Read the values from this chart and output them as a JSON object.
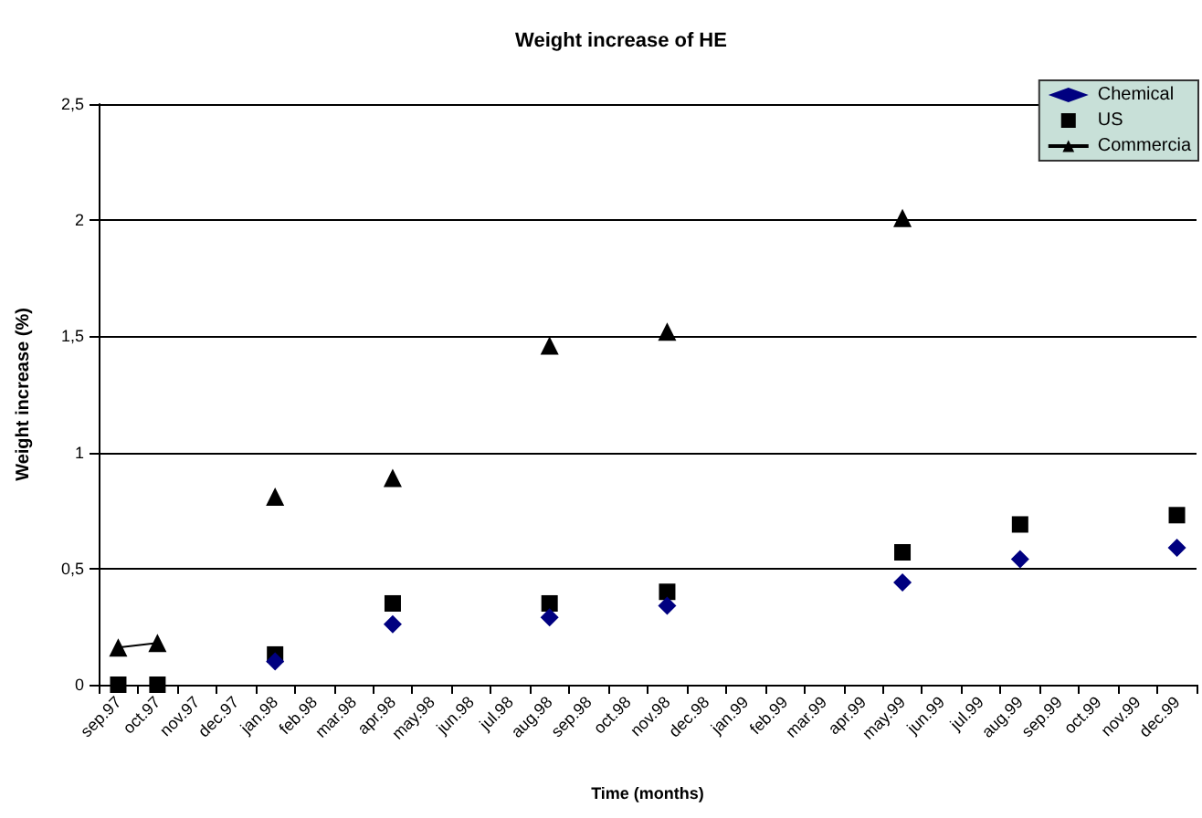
{
  "chart_data": {
    "type": "line",
    "title": "Weight increase of HE",
    "xlabel": "Time (months)",
    "ylabel": "Weight increase (%)",
    "categories": [
      "sep.97",
      "oct.97",
      "nov.97",
      "dec.97",
      "jan.98",
      "feb.98",
      "mar.98",
      "apr.98",
      "may.98",
      "jun.98",
      "jul.98",
      "aug.98",
      "sep.98",
      "oct.98",
      "nov.98",
      "dec.98",
      "jan.99",
      "feb.99",
      "mar.99",
      "apr.99",
      "may.99",
      "jun.99",
      "jul.99",
      "aug.99",
      "sep.99",
      "oct.99",
      "nov.99",
      "dec.99"
    ],
    "series": [
      {
        "name": "Chemical",
        "type": "scatter",
        "color": "#000080",
        "marker": "diamond",
        "values": [
          null,
          null,
          null,
          null,
          0.1,
          null,
          null,
          0.26,
          null,
          null,
          null,
          0.29,
          null,
          null,
          0.34,
          null,
          null,
          null,
          null,
          null,
          0.44,
          null,
          null,
          0.54,
          null,
          null,
          null,
          0.59
        ]
      },
      {
        "name": "US",
        "type": "scatter",
        "color": "#000000",
        "marker": "square",
        "values": [
          0,
          0,
          null,
          null,
          0.13,
          null,
          null,
          0.35,
          null,
          null,
          null,
          0.35,
          null,
          null,
          0.4,
          null,
          null,
          null,
          null,
          null,
          0.57,
          null,
          null,
          0.69,
          null,
          null,
          null,
          0.73
        ]
      },
      {
        "name": "Commercia",
        "color": "#000000",
        "marker": "triangle",
        "values": [
          0.16,
          0.18,
          null,
          null,
          0.81,
          null,
          null,
          0.89,
          null,
          null,
          null,
          1.46,
          null,
          null,
          1.52,
          null,
          null,
          null,
          null,
          null,
          2.01,
          null,
          null,
          null,
          null,
          null,
          null,
          null
        ]
      }
    ],
    "ylim": [
      0,
      2.5
    ],
    "yticks": [
      0,
      {
        "value": 0.5,
        "label": "0,5"
      },
      1,
      {
        "value": 1.5,
        "label": "1,5"
      },
      2,
      {
        "value": 2.5,
        "label": "2,5"
      }
    ],
    "grid": "y",
    "legend": "top right",
    "line_style": "solid"
  }
}
